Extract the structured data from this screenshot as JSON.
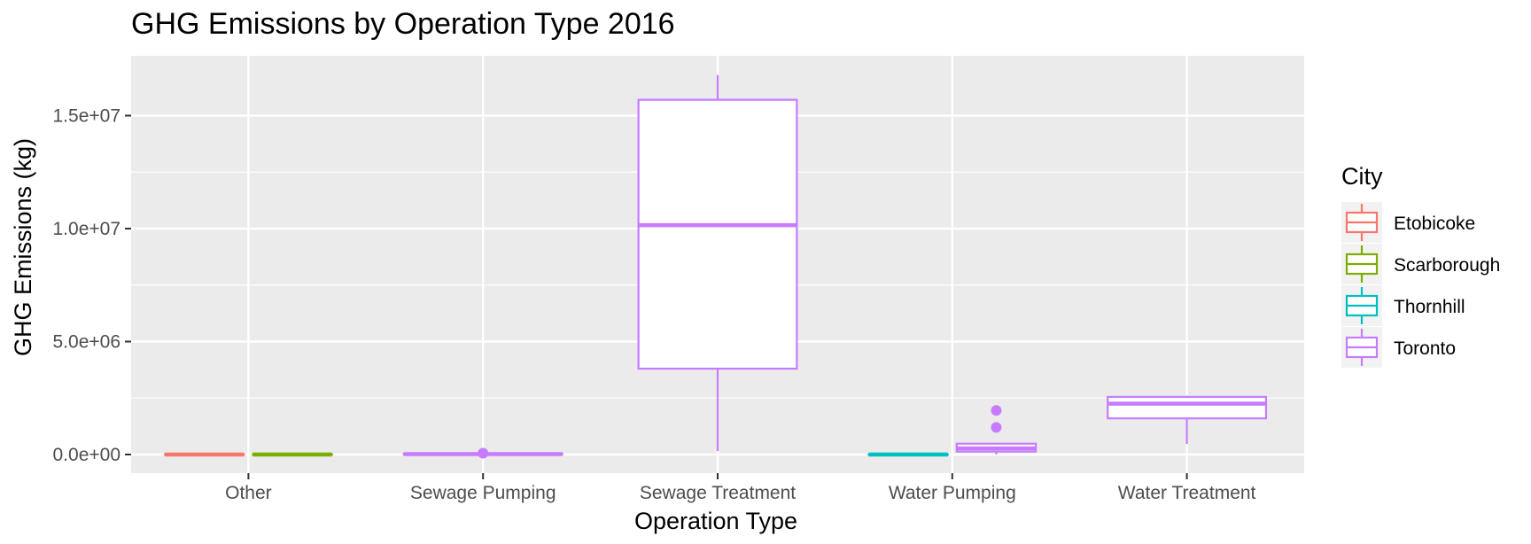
{
  "chart_data": {
    "type": "boxplot",
    "title": "GHG Emissions by Operation Type 2016",
    "xlabel": "Operation Type",
    "ylabel": "GHG Emissions (kg)",
    "ylim": [
      -800000,
      17600000
    ],
    "y_ticks": [
      {
        "value": 0,
        "label": "0.0e+00"
      },
      {
        "value": 5000000,
        "label": "5.0e+06"
      },
      {
        "value": 10000000,
        "label": "1.0e+07"
      },
      {
        "value": 15000000,
        "label": "1.5e+07"
      }
    ],
    "categories": [
      "Other",
      "Sewage Pumping",
      "Sewage Treatment",
      "Water Pumping",
      "Water Treatment"
    ],
    "grid": true,
    "legend": {
      "title": "City",
      "position": "right",
      "entries": [
        {
          "name": "Etobicoke",
          "color": "#F8766D"
        },
        {
          "name": "Scarborough",
          "color": "#7CAE00"
        },
        {
          "name": "Thornhill",
          "color": "#00BFC4"
        },
        {
          "name": "Toronto",
          "color": "#C77CFF"
        }
      ]
    },
    "boxes": [
      {
        "category": "Other",
        "city": "Etobicoke",
        "slot": 0,
        "slots": 2,
        "min": 0,
        "q1": 0,
        "median": 0,
        "q3": 0,
        "max": 0,
        "outliers": []
      },
      {
        "category": "Other",
        "city": "Scarborough",
        "slot": 1,
        "slots": 2,
        "min": 0,
        "q1": 0,
        "median": 0,
        "q3": 0,
        "max": 0,
        "outliers": []
      },
      {
        "category": "Sewage Pumping",
        "city": "Toronto",
        "slot": 0,
        "slots": 1,
        "min": 0,
        "q1": 0,
        "median": 20000,
        "q3": 40000,
        "max": 60000,
        "outliers": [
          60000
        ]
      },
      {
        "category": "Sewage Treatment",
        "city": "Toronto",
        "slot": 0,
        "slots": 1,
        "min": 150000,
        "q1": 3800000,
        "median": 10150000,
        "q3": 15700000,
        "max": 16800000,
        "outliers": []
      },
      {
        "category": "Water Pumping",
        "city": "Thornhill",
        "slot": 0,
        "slots": 2,
        "min": 0,
        "q1": 0,
        "median": 0,
        "q3": 0,
        "max": 0,
        "outliers": []
      },
      {
        "category": "Water Pumping",
        "city": "Toronto",
        "slot": 1,
        "slots": 2,
        "min": 0,
        "q1": 130000,
        "median": 270000,
        "q3": 480000,
        "max": 520000,
        "outliers": [
          1200000,
          1950000
        ]
      },
      {
        "category": "Water Treatment",
        "city": "Toronto",
        "slot": 0,
        "slots": 1,
        "min": 470000,
        "q1": 1600000,
        "median": 2250000,
        "q3": 2550000,
        "max": 2600000,
        "outliers": []
      }
    ]
  }
}
